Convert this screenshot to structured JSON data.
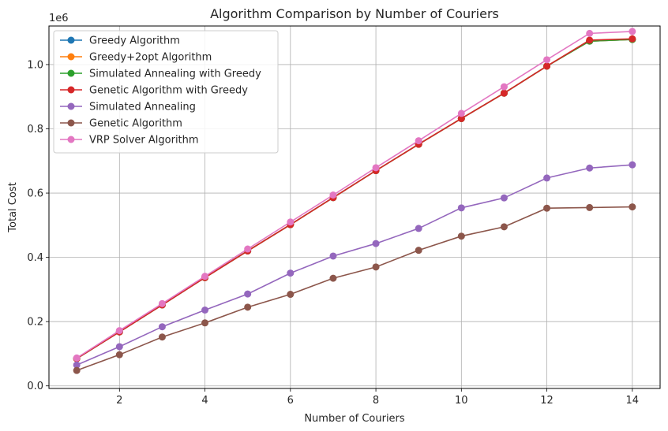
{
  "chart_data": {
    "type": "line",
    "title": "Algorithm Comparison by Number of Couriers",
    "xlabel": "Number of Couriers",
    "ylabel": "Total Cost",
    "y_offset_label": "1e6",
    "xlim": [
      0.35,
      14.65
    ],
    "ylim": [
      -0.008,
      1.12
    ],
    "x_ticks": [
      2,
      4,
      6,
      8,
      10,
      12,
      14
    ],
    "y_ticks": [
      0.0,
      0.2,
      0.4,
      0.6,
      0.8,
      1.0
    ],
    "y_tick_labels": [
      "0.0",
      "0.2",
      "0.4",
      "0.6",
      "0.8",
      "1.0"
    ],
    "grid": true,
    "legend_position": "upper-left",
    "x": [
      1,
      2,
      3,
      4,
      5,
      6,
      7,
      8,
      9,
      10,
      11,
      12,
      13,
      14
    ],
    "series": [
      {
        "name": "Greedy Algorithm",
        "color": "#1f77b4",
        "values": [
          0.085,
          0.168,
          0.252,
          0.337,
          0.42,
          0.502,
          0.586,
          0.67,
          0.752,
          0.832,
          0.911,
          0.995,
          1.073,
          1.078
        ]
      },
      {
        "name": "Greedy+2opt Algorithm",
        "color": "#ff7f0e",
        "values": [
          0.085,
          0.168,
          0.252,
          0.337,
          0.42,
          0.502,
          0.586,
          0.67,
          0.752,
          0.832,
          0.911,
          0.995,
          1.073,
          1.078
        ]
      },
      {
        "name": "Simulated Annealing with Greedy",
        "color": "#2ca02c",
        "values": [
          0.085,
          0.168,
          0.252,
          0.337,
          0.42,
          0.502,
          0.586,
          0.67,
          0.752,
          0.832,
          0.911,
          0.995,
          1.073,
          1.078
        ]
      },
      {
        "name": "Genetic Algorithm with Greedy",
        "color": "#d62728",
        "values": [
          0.085,
          0.168,
          0.252,
          0.337,
          0.42,
          0.502,
          0.586,
          0.67,
          0.752,
          0.832,
          0.911,
          0.995,
          1.076,
          1.08
        ]
      },
      {
        "name": "Simulated Annealing",
        "color": "#9467bd",
        "values": [
          0.065,
          0.122,
          0.184,
          0.236,
          0.286,
          0.351,
          0.404,
          0.443,
          0.49,
          0.554,
          0.585,
          0.647,
          0.678,
          0.688
        ]
      },
      {
        "name": "Genetic Algorithm",
        "color": "#8c564b",
        "values": [
          0.048,
          0.097,
          0.152,
          0.196,
          0.245,
          0.285,
          0.335,
          0.37,
          0.422,
          0.466,
          0.495,
          0.553,
          0.555,
          0.557
        ]
      },
      {
        "name": "VRP Solver Algorithm",
        "color": "#e377c2",
        "values": [
          0.087,
          0.172,
          0.256,
          0.341,
          0.426,
          0.51,
          0.594,
          0.679,
          0.763,
          0.848,
          0.931,
          1.015,
          1.097,
          1.103
        ]
      }
    ]
  }
}
